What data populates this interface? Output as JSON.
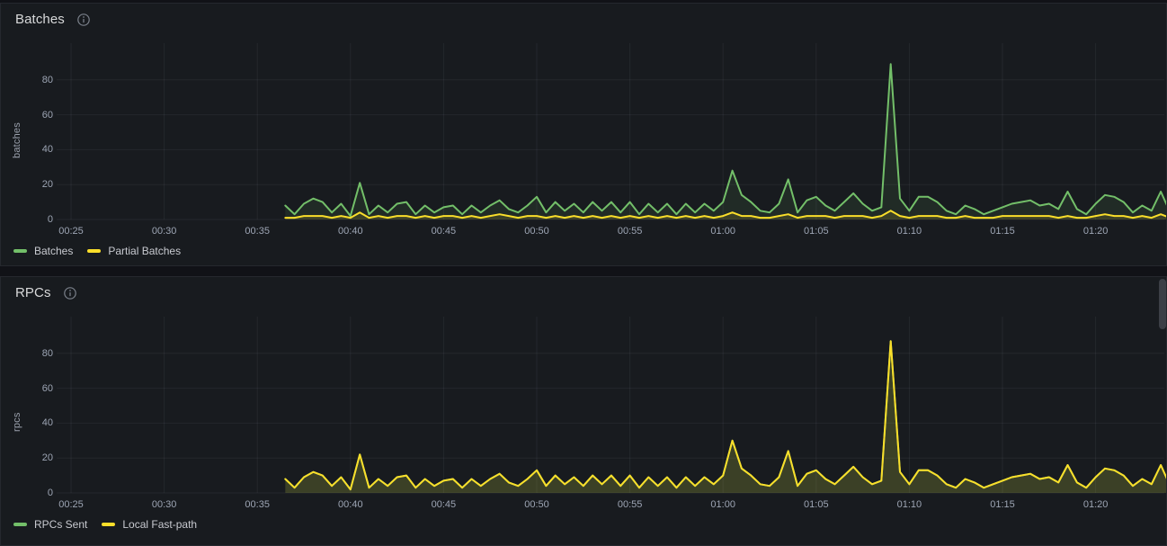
{
  "colors": {
    "page_bg": "#111217",
    "panel_bg": "#181b1f",
    "green": "#73BF69",
    "yellow": "#FADE2A",
    "grid": "rgba(204,204,220,0.07)"
  },
  "scrollbar": {
    "present": true
  },
  "chart_data": [
    {
      "type": "area",
      "title": "Batches",
      "ylabel": "batches",
      "grid": true,
      "legend_position": "bottom",
      "y_ticks": [
        0,
        20,
        40,
        60,
        80
      ],
      "ylim": [
        0,
        95
      ],
      "x_axis_ticks": [
        "00:25",
        "00:30",
        "00:35",
        "00:40",
        "00:45",
        "00:50",
        "00:55",
        "01:00",
        "01:05",
        "01:10",
        "01:15",
        "01:20"
      ],
      "x_start_minutes": 36.5,
      "x_step_minutes": 0.5,
      "series": [
        {
          "name": "Batches",
          "color": "#73BF69",
          "fill_opacity": 0.1,
          "values": [
            8,
            3,
            9,
            12,
            10,
            4,
            9,
            2,
            21,
            3,
            8,
            4,
            9,
            10,
            3,
            8,
            4,
            7,
            8,
            3,
            8,
            4,
            8,
            11,
            6,
            4,
            8,
            13,
            4,
            10,
            5,
            9,
            4,
            10,
            5,
            10,
            4,
            10,
            3,
            9,
            4,
            9,
            3,
            9,
            4,
            9,
            5,
            10,
            28,
            14,
            10,
            5,
            4,
            9,
            23,
            4,
            11,
            13,
            8,
            5,
            10,
            15,
            9,
            5,
            7,
            89,
            12,
            5,
            13,
            13,
            10,
            5,
            3,
            8,
            6,
            3,
            5,
            7,
            9,
            10,
            11,
            8,
            9,
            6,
            16,
            6,
            3,
            9,
            14,
            13,
            10,
            4,
            8,
            5,
            16,
            4
          ]
        },
        {
          "name": "Partial Batches",
          "color": "#FADE2A",
          "fill_opacity": 0.12,
          "values": [
            1,
            1,
            2,
            2,
            2,
            1,
            2,
            1,
            4,
            1,
            2,
            1,
            2,
            2,
            1,
            2,
            1,
            2,
            2,
            1,
            2,
            1,
            2,
            3,
            2,
            1,
            2,
            2,
            1,
            2,
            1,
            2,
            1,
            2,
            1,
            2,
            1,
            2,
            1,
            2,
            1,
            2,
            1,
            2,
            1,
            2,
            1,
            2,
            4,
            2,
            2,
            1,
            1,
            2,
            3,
            1,
            2,
            2,
            2,
            1,
            2,
            2,
            2,
            1,
            2,
            5,
            2,
            1,
            2,
            2,
            2,
            1,
            1,
            2,
            1,
            1,
            1,
            2,
            2,
            2,
            2,
            2,
            2,
            1,
            2,
            1,
            1,
            2,
            3,
            2,
            2,
            1,
            2,
            1,
            3,
            1
          ]
        }
      ]
    },
    {
      "type": "area",
      "title": "RPCs",
      "ylabel": "rpcs",
      "grid": true,
      "legend_position": "bottom",
      "y_ticks": [
        0,
        20,
        40,
        60,
        80
      ],
      "ylim": [
        0,
        95
      ],
      "x_axis_ticks": [
        "00:25",
        "00:30",
        "00:35",
        "00:40",
        "00:45",
        "00:50",
        "00:55",
        "01:00",
        "01:05",
        "01:10",
        "01:15",
        "01:20"
      ],
      "x_start_minutes": 36.5,
      "x_step_minutes": 0.5,
      "series": [
        {
          "name": "RPCs Sent",
          "color": "#73BF69",
          "fill_opacity": 0.1,
          "note": "fully overlapped by Local Fast-path line",
          "values": [
            8,
            3,
            9,
            12,
            10,
            4,
            9,
            2,
            22,
            3,
            8,
            4,
            9,
            10,
            3,
            8,
            4,
            7,
            8,
            3,
            8,
            4,
            8,
            11,
            6,
            4,
            8,
            13,
            4,
            10,
            5,
            9,
            4,
            10,
            5,
            10,
            4,
            10,
            3,
            9,
            4,
            9,
            3,
            9,
            4,
            9,
            5,
            10,
            30,
            14,
            10,
            5,
            4,
            9,
            24,
            4,
            11,
            13,
            8,
            5,
            10,
            15,
            9,
            5,
            7,
            87,
            12,
            5,
            13,
            13,
            10,
            5,
            3,
            8,
            6,
            3,
            5,
            7,
            9,
            10,
            11,
            8,
            9,
            6,
            16,
            6,
            3,
            9,
            14,
            13,
            10,
            4,
            8,
            5,
            16,
            4
          ]
        },
        {
          "name": "Local Fast-path",
          "color": "#FADE2A",
          "fill_opacity": 0.12,
          "values": [
            8,
            3,
            9,
            12,
            10,
            4,
            9,
            2,
            22,
            3,
            8,
            4,
            9,
            10,
            3,
            8,
            4,
            7,
            8,
            3,
            8,
            4,
            8,
            11,
            6,
            4,
            8,
            13,
            4,
            10,
            5,
            9,
            4,
            10,
            5,
            10,
            4,
            10,
            3,
            9,
            4,
            9,
            3,
            9,
            4,
            9,
            5,
            10,
            30,
            14,
            10,
            5,
            4,
            9,
            24,
            4,
            11,
            13,
            8,
            5,
            10,
            15,
            9,
            5,
            7,
            87,
            12,
            5,
            13,
            13,
            10,
            5,
            3,
            8,
            6,
            3,
            5,
            7,
            9,
            10,
            11,
            8,
            9,
            6,
            16,
            6,
            3,
            9,
            14,
            13,
            10,
            4,
            8,
            5,
            16,
            4
          ]
        }
      ]
    }
  ]
}
